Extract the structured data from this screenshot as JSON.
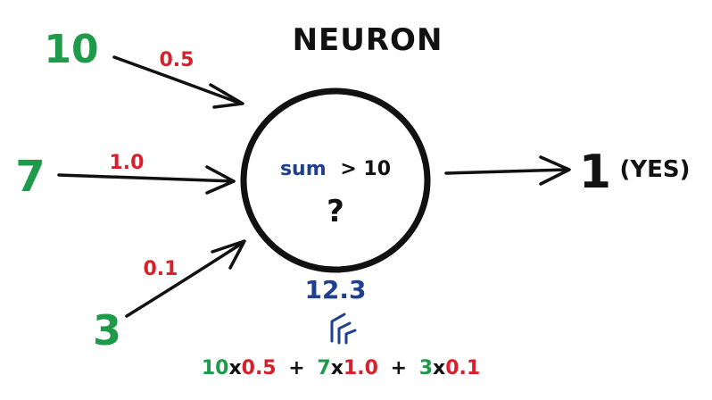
{
  "title": "NEURON",
  "inputs": [
    {
      "value": "10",
      "weight": "0.5"
    },
    {
      "value": "7",
      "weight": "1.0"
    },
    {
      "value": "3",
      "weight": "0.1"
    }
  ],
  "neuron": {
    "condition_word": "sum",
    "condition_rest": "> 10",
    "unknown": "?"
  },
  "sum_result": "12.3",
  "formula": {
    "terms": [
      {
        "value": "10",
        "times": "x",
        "weight": "0.5"
      },
      {
        "value": "7",
        "times": "x",
        "weight": "1.0"
      },
      {
        "value": "3",
        "times": "x",
        "weight": "0.1"
      }
    ],
    "plus": "+"
  },
  "output": {
    "value": "1",
    "label": "(YES)"
  },
  "colors": {
    "input_green": "#1f9a4a",
    "weight_red": "#d8202c",
    "sum_blue": "#1f3f8f",
    "ink": "#111111"
  }
}
